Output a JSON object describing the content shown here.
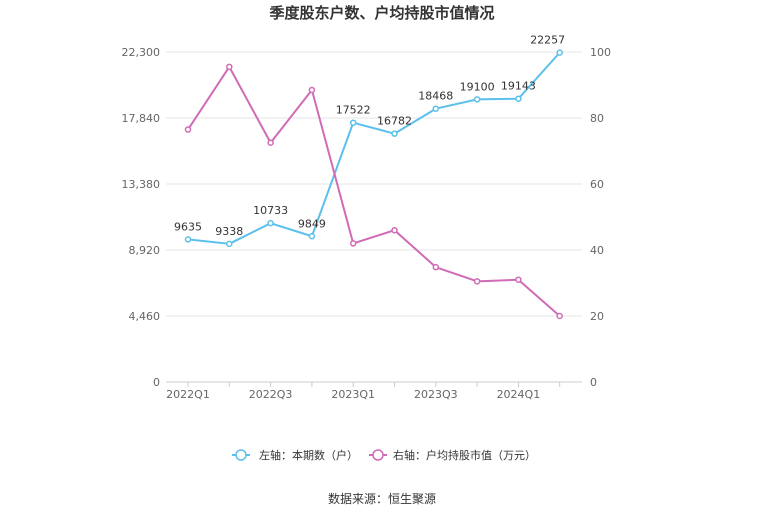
{
  "chart_data": {
    "type": "line",
    "title": "季度股东户数、户均持股市值情况",
    "x": [
      "2022Q1",
      "2022Q2",
      "2022Q3",
      "2022Q4",
      "2023Q1",
      "2023Q2",
      "2023Q3",
      "2023Q4",
      "2024Q1",
      "2024Q2"
    ],
    "x_tick_labels": [
      "2022Q1",
      "2022Q3",
      "2023Q1",
      "2023Q3",
      "2024Q1"
    ],
    "left_axis": {
      "ticks": [
        "0",
        "4,460",
        "8,920",
        "13,380",
        "17,840",
        "22,300"
      ],
      "ylim": [
        0,
        22300
      ]
    },
    "right_axis": {
      "ticks": [
        "0",
        "20",
        "40",
        "60",
        "80",
        "100"
      ],
      "ylim": [
        0,
        100
      ]
    },
    "series": [
      {
        "name": "左轴：本期数（户）",
        "axis": "left",
        "color": "#5bc0eb",
        "values": [
          9635,
          9338,
          10733,
          9849,
          17522,
          16782,
          18468,
          19100,
          19143,
          22257
        ],
        "labels": [
          "9635",
          "9338",
          "10733",
          "9849",
          "17522",
          "16782",
          "18468",
          "19100",
          "19143",
          "22257"
        ]
      },
      {
        "name": "右轴：户均持股市值（万元）",
        "axis": "right",
        "color": "#d06bb5",
        "values": [
          76.5,
          95.5,
          72.5,
          88.5,
          42.0,
          46.0,
          34.8,
          30.5,
          31.0,
          20.0
        ]
      }
    ],
    "legend_position": "bottom",
    "grid": true
  },
  "source": "数据来源：恒生聚源"
}
